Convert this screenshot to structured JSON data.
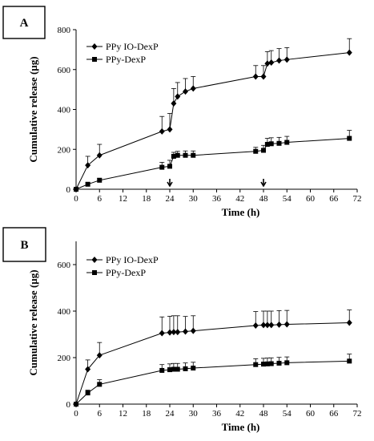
{
  "chart_data": [
    {
      "type": "line",
      "panel_label": "A",
      "xlabel": "Time  (h)",
      "ylabel": "Cumulative release (µg)",
      "xlim": [
        0,
        72
      ],
      "ylim": [
        0,
        800
      ],
      "xticks": [
        "0",
        "6",
        "12",
        "18",
        "24",
        "30",
        "36",
        "42",
        "48",
        "54",
        "60",
        "66",
        "72"
      ],
      "yticks": [
        "0",
        "200",
        "400",
        "600",
        "800"
      ],
      "grid": false,
      "legend": "top-left",
      "stimulation_arrows_at": [
        24,
        48
      ],
      "series": [
        {
          "name": "PPy IO-DexP",
          "marker": "diamond",
          "x": [
            0,
            3,
            6,
            22,
            24,
            25,
            26,
            28,
            30,
            46,
            48,
            49,
            50,
            52,
            54,
            70
          ],
          "y": [
            0,
            120,
            170,
            290,
            300,
            430,
            465,
            490,
            505,
            565,
            565,
            630,
            635,
            645,
            650,
            685
          ],
          "err": [
            0,
            45,
            55,
            75,
            80,
            75,
            70,
            65,
            60,
            55,
            55,
            60,
            60,
            60,
            60,
            70
          ]
        },
        {
          "name": "PPy-DexP",
          "marker": "square",
          "x": [
            0,
            3,
            6,
            22,
            24,
            25,
            26,
            28,
            30,
            46,
            48,
            49,
            50,
            52,
            54,
            70
          ],
          "y": [
            0,
            25,
            45,
            110,
            115,
            165,
            170,
            170,
            170,
            190,
            195,
            225,
            228,
            230,
            235,
            255
          ],
          "err": [
            0,
            8,
            10,
            25,
            30,
            20,
            20,
            22,
            22,
            20,
            25,
            30,
            30,
            30,
            30,
            40
          ]
        }
      ]
    },
    {
      "type": "line",
      "panel_label": "B",
      "xlabel": "Time  (h)",
      "ylabel": "Cumulative release (µg)",
      "xlim": [
        0,
        72
      ],
      "ylim": [
        0,
        700
      ],
      "xticks": [
        "0",
        "6",
        "12",
        "18",
        "24",
        "30",
        "36",
        "42",
        "48",
        "54",
        "60",
        "66",
        "72"
      ],
      "yticks": [
        "0",
        "200",
        "400",
        "600"
      ],
      "grid": false,
      "legend": "top-left",
      "series": [
        {
          "name": "PPy IO-DexP",
          "marker": "diamond",
          "x": [
            0,
            3,
            6,
            22,
            24,
            25,
            26,
            28,
            30,
            46,
            48,
            49,
            50,
            52,
            54,
            70
          ],
          "y": [
            0,
            150,
            210,
            305,
            308,
            310,
            310,
            312,
            315,
            338,
            340,
            340,
            340,
            342,
            343,
            350
          ],
          "err": [
            0,
            40,
            55,
            70,
            70,
            70,
            70,
            65,
            65,
            60,
            60,
            60,
            60,
            60,
            60,
            55
          ]
        },
        {
          "name": "PPy-DexP",
          "marker": "square",
          "x": [
            0,
            3,
            6,
            22,
            24,
            25,
            26,
            28,
            30,
            46,
            48,
            49,
            50,
            52,
            54,
            70
          ],
          "y": [
            0,
            48,
            85,
            145,
            148,
            150,
            150,
            152,
            155,
            170,
            172,
            173,
            174,
            176,
            178,
            185
          ],
          "err": [
            0,
            12,
            20,
            25,
            25,
            25,
            25,
            25,
            25,
            25,
            25,
            25,
            25,
            25,
            25,
            30
          ]
        }
      ]
    }
  ]
}
